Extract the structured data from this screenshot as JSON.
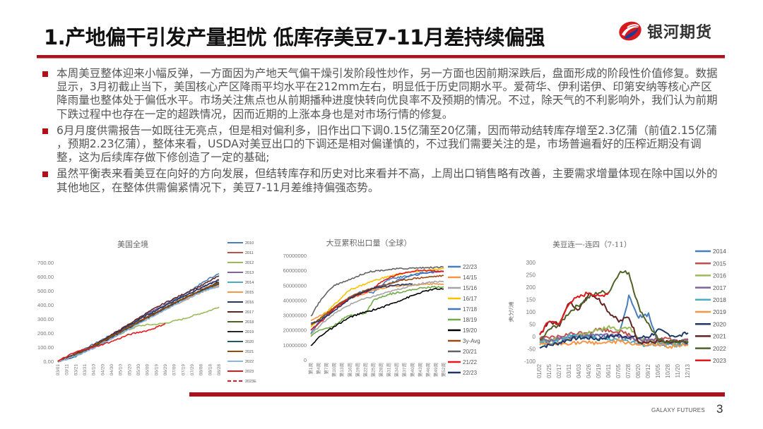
{
  "header": {
    "title": "1.产地偏干引发产量担忧 低库存美豆7-11月差持续偏强",
    "logo_text": "银河期货",
    "accent_color": "#a8141d"
  },
  "bullets": [
    "本周美豆整体迎来小幅反弹，一方面因为产地天气偏干燥引发阶段性炒作，另一方面也因前期深跌后，盘面形成的阶段性价值修复。数据显示，3月初截止当下，美国核心产区降雨平均水平在212mm左右，明显低于历史同期水平。爱荷华、伊利诺伊、印第安纳等核心产区降雨量也整体处于偏低水平。市场关注焦点也从前期播种进度快转向优良率不及预期的情况。不过，除天气的不利影响外，我们认为前期下跌过程中也存在一定的超跌情况，因而近期的上涨本身也是对市场行情的修复。",
    "6月月度供需报告一如既往无亮点，但是相对偏利多，旧作出口下调0.15亿蒲至20亿蒲，因而带动结转库存增至2.3亿蒲（前值2.15亿蒲 ，预期2.23亿蒲），整体来看，USDA对美豆出口的下调还是相对偏谨慎的，不过我们需要关注的是，市场普遍看好的压榨近期没有调整，这为后续库存做下修创造了一定的基础;",
    "虽然平衡表来看美豆在向好的方向发展，但结转库存和历史对比来看并不高，上周出口销售略有改善，主要需求增量体现在除中国以外的其他地区，在整体供需偏紧情况下，美豆7-11月差维持偏强态势。"
  ],
  "footer": {
    "brand": "GALAXY FUTURES",
    "page": "3"
  },
  "chart_data": [
    {
      "type": "line",
      "title": "美国全境",
      "xlabel": "",
      "ylabel": "",
      "ylim": [
        0,
        700
      ],
      "yticks": [
        "0.00",
        "100.00",
        "200.00",
        "300.00",
        "400.00",
        "500.00",
        "600.00",
        "700.00"
      ],
      "categories": [
        "03/01",
        "03/11",
        "03/21",
        "03/31",
        "04/10",
        "04/20",
        "04/30",
        "05/10",
        "05/20",
        "05/30",
        "06/09",
        "06/19",
        "06/29",
        "07/09",
        "07/19",
        "07/29",
        "08/08",
        "08/18",
        "08/28"
      ],
      "grid": false,
      "legend_position": "right",
      "series": [
        {
          "name": "2010",
          "color": "#4a7ebb",
          "values": [
            0,
            28,
            58,
            90,
            120,
            155,
            190,
            225,
            262,
            300,
            335,
            365,
            400,
            435,
            470,
            510,
            550,
            590,
            620
          ]
        },
        {
          "name": "2011",
          "color": "#c0504d",
          "values": [
            0,
            22,
            50,
            80,
            110,
            140,
            175,
            210,
            245,
            280,
            315,
            345,
            380,
            410,
            440,
            470,
            500,
            525,
            550
          ]
        },
        {
          "name": "2012",
          "color": "#9bbb59",
          "values": [
            0,
            20,
            45,
            75,
            105,
            135,
            165,
            195,
            225,
            250,
            258,
            262,
            270,
            285,
            300,
            320,
            340,
            360,
            385
          ]
        },
        {
          "name": "2013",
          "color": "#8064a2",
          "values": [
            0,
            18,
            42,
            72,
            110,
            145,
            185,
            225,
            265,
            305,
            340,
            370,
            400,
            430,
            460,
            490,
            520,
            550,
            580
          ]
        },
        {
          "name": "2014",
          "color": "#4bacc6",
          "values": [
            0,
            15,
            35,
            65,
            95,
            130,
            165,
            200,
            235,
            270,
            305,
            340,
            375,
            410,
            440,
            470,
            495,
            515,
            535
          ]
        },
        {
          "name": "2015",
          "color": "#f79646",
          "values": [
            0,
            20,
            45,
            75,
            108,
            140,
            172,
            205,
            238,
            270,
            302,
            334,
            366,
            398,
            428,
            458,
            488,
            515,
            540
          ]
        },
        {
          "name": "2016",
          "color": "#1f3864",
          "values": [
            0,
            22,
            48,
            78,
            110,
            145,
            182,
            218,
            255,
            292,
            328,
            362,
            395,
            428,
            460,
            490,
            520,
            548,
            575
          ]
        },
        {
          "name": "2017",
          "color": "#632523",
          "values": [
            0,
            24,
            52,
            82,
            115,
            150,
            188,
            225,
            265,
            305,
            345,
            380,
            415,
            445,
            475,
            505,
            535,
            570,
            605
          ]
        },
        {
          "name": "2018",
          "color": "#4f6228",
          "values": [
            0,
            20,
            46,
            76,
            108,
            142,
            176,
            210,
            244,
            278,
            312,
            346,
            380,
            412,
            444,
            474,
            504,
            530,
            555
          ]
        },
        {
          "name": "2019",
          "color": "#262626",
          "values": [
            0,
            18,
            40,
            68,
            98,
            130,
            165,
            200,
            236,
            272,
            308,
            344,
            378,
            410,
            442,
            472,
            502,
            530,
            560
          ]
        },
        {
          "name": "2020",
          "color": "#215868",
          "values": [
            0,
            20,
            44,
            72,
            104,
            138,
            172,
            206,
            240,
            274,
            308,
            342,
            376,
            408,
            440,
            470,
            498,
            522,
            545
          ]
        },
        {
          "name": "2021",
          "color": "#984807",
          "values": [
            0,
            22,
            48,
            78,
            110,
            142,
            176,
            210,
            244,
            278,
            312,
            346,
            380,
            412,
            444,
            474,
            504,
            532,
            558
          ]
        },
        {
          "name": "2022",
          "color": "#8db3e2",
          "values": [
            0,
            16,
            38,
            66,
            96,
            128,
            162,
            196,
            230,
            264,
            298,
            332,
            366,
            398,
            430,
            460,
            488,
            512,
            530
          ]
        },
        {
          "name": "2023",
          "color": "#e31a1c",
          "values": [
            0,
            35,
            65,
            85,
            100,
            120,
            140,
            165,
            190,
            205,
            218,
            240,
            268
          ]
        },
        {
          "name": "2023E",
          "color": "#e31a1c",
          "dashed": true,
          "values": []
        }
      ]
    },
    {
      "type": "line",
      "title": "大豆累积出口量（全球）",
      "xlabel": "",
      "ylabel": "",
      "ylim": [
        0,
        70000000
      ],
      "yticks": [
        "0",
        "10000000",
        "20000000",
        "30000000",
        "40000000",
        "50000000",
        "60000000",
        "70000000"
      ],
      "categories": [
        "第1周",
        "第4周",
        "第7周",
        "第10周",
        "第13周",
        "第16周",
        "第19周",
        "第22周",
        "第25周",
        "第28周",
        "第31周",
        "第34周",
        "第37周",
        "第40周",
        "第43周",
        "第46周",
        "第49周",
        "第52周"
      ],
      "grid": false,
      "legend_position": "right",
      "series": [
        {
          "name": "22/23",
          "color": "#4a7ebb",
          "values": [
            18000000,
            25000000,
            30000000,
            35000000,
            39000000,
            42000000,
            44000000,
            46000000,
            45000000,
            50000000,
            54000000,
            55000000,
            56000000,
            57000000,
            58000000,
            58500000,
            59000000,
            59500000
          ]
        },
        {
          "name": "14/15",
          "color": "#f79646",
          "values": [
            26000000,
            29000000,
            32000000,
            35000000,
            38000000,
            41000000,
            43000000,
            45000000,
            47000000,
            48000000,
            49000000,
            49500000,
            50000000,
            50000000,
            50500000,
            51000000,
            51000000,
            50500000
          ]
        },
        {
          "name": "15/16",
          "color": "#a5a5a5",
          "values": [
            17000000,
            22000000,
            27000000,
            31000000,
            34000000,
            37000000,
            39500000,
            41000000,
            42500000,
            44000000,
            45500000,
            47000000,
            48500000,
            50000000,
            51000000,
            52000000,
            52500000,
            52500000
          ]
        },
        {
          "name": "16/17",
          "color": "#ffc000",
          "values": [
            22000000,
            27000000,
            32000000,
            37000000,
            42000000,
            47000000,
            49000000,
            51000000,
            53000000,
            54500000,
            56000000,
            57000000,
            58000000,
            59000000,
            59500000,
            60000000,
            60500000,
            61000000
          ]
        },
        {
          "name": "17/18",
          "color": "#4472c4",
          "values": [
            20000000,
            25000000,
            30000000,
            35000000,
            39000000,
            42000000,
            44500000,
            46500000,
            48000000,
            49500000,
            51000000,
            53000000,
            55000000,
            56500000,
            57500000,
            58500000,
            59000000,
            59500000
          ]
        },
        {
          "name": "18/19",
          "color": "#70ad47",
          "values": [
            16000000,
            20000000,
            21000000,
            23000000,
            27000000,
            30000000,
            30500000,
            31000000,
            40000000,
            42000000,
            44000000,
            45000000,
            46000000,
            47000000,
            48000000,
            48500000,
            49000000,
            49000000
          ]
        },
        {
          "name": "19/20",
          "color": "#000000",
          "values": [
            9000000,
            15000000,
            19000000,
            22000000,
            25500000,
            28500000,
            30500000,
            32000000,
            33500000,
            35000000,
            37000000,
            39000000,
            41000000,
            43000000,
            45000000,
            46500000,
            47500000,
            47500000
          ]
        },
        {
          "name": "3y-Avg",
          "color": "#9e480e",
          "values": [
            23000000,
            27000000,
            31000000,
            35000000,
            39000000,
            42000000,
            44500000,
            46500000,
            48000000,
            49500000,
            51000000,
            52500000,
            53500000,
            54500000,
            55000000,
            55500000,
            56000000,
            56500000
          ]
        },
        {
          "name": "20/21",
          "color": "#636363",
          "values": [
            29000000,
            38000000,
            45000000,
            50000000,
            52000000,
            54000000,
            56000000,
            58500000,
            59500000,
            60000000,
            60500000,
            61000000,
            61200000,
            61500000,
            61700000,
            61800000,
            62000000,
            62200000
          ]
        },
        {
          "name": "21/22",
          "color": "#e31a1c",
          "values": [
            20000000,
            24000000,
            29000000,
            34000000,
            38000000,
            41000000,
            43500000,
            45500000,
            48000000,
            52000000,
            55000000,
            57000000,
            58500000,
            59500000,
            60000000,
            60000000,
            59500000,
            59000000
          ]
        },
        {
          "name": "22/23",
          "color": "#1f3864",
          "values": [
            24000000,
            26000000,
            29000000,
            33000000,
            37000000,
            41000000,
            43500000,
            46000000,
            48000000,
            49000000,
            49500000,
            50000000,
            50500000,
            51000000
          ]
        }
      ]
    },
    {
      "type": "line",
      "title": "美豆连一-连四（7-11）",
      "xlabel": "",
      "ylabel": "美分/蒲",
      "ylim": [
        -100,
        300
      ],
      "yticks": [
        "-100",
        "-50",
        "0",
        "50",
        "100",
        "150",
        "200",
        "250",
        "300"
      ],
      "categories": [
        "01/02",
        "01/25",
        "02/17",
        "03/11",
        "04/03",
        "04/26",
        "05/19",
        "06/11",
        "07/05",
        "07/28",
        "08/20",
        "09/12",
        "10/05",
        "10/28",
        "11/20",
        "12/13"
      ],
      "grid": false,
      "legend_position": "right",
      "series": [
        {
          "name": "2014",
          "color": "#4a7ebb",
          "values": [
            -20,
            -15,
            -10,
            0,
            5,
            0,
            5,
            0,
            10,
            160,
            80,
            90,
            -30,
            -30,
            -35,
            -30
          ]
        },
        {
          "name": "2015",
          "color": "#c0504d",
          "values": [
            -10,
            -5,
            0,
            10,
            15,
            20,
            30,
            25,
            20,
            10,
            -20,
            -20,
            -10,
            -10,
            -15,
            -10
          ]
        },
        {
          "name": "2016",
          "color": "#9bbb59",
          "values": [
            -20,
            -15,
            -10,
            -5,
            5,
            15,
            25,
            40,
            30,
            40,
            -10,
            -20,
            -20,
            -20,
            -25,
            -20
          ]
        },
        {
          "name": "2017",
          "color": "#8064a2",
          "values": [
            -10,
            -15,
            -10,
            -5,
            0,
            5,
            0,
            5,
            0,
            -5,
            -10,
            -15,
            -20,
            -20,
            -20,
            -15
          ]
        },
        {
          "name": "2018",
          "color": "#4bacc6",
          "values": [
            -30,
            -25,
            -20,
            5,
            0,
            -5,
            -10,
            -10,
            -10,
            -20,
            -30,
            -35,
            -30,
            -35,
            -35,
            -30
          ]
        },
        {
          "name": "2019",
          "color": "#f79646",
          "values": [
            -35,
            -30,
            -30,
            -25,
            -25,
            -25,
            -25,
            -25,
            -20,
            -25,
            -35,
            -35,
            -35,
            -40,
            -40,
            -35
          ]
        },
        {
          "name": "2020",
          "color": "#1f3864",
          "values": [
            -40,
            -35,
            -25,
            -10,
            -5,
            -5,
            -10,
            0,
            5,
            0,
            -5,
            0,
            25,
            10,
            0,
            15
          ]
        },
        {
          "name": "2021",
          "color": "#632523",
          "values": [
            10,
            60,
            50,
            140,
            110,
            180,
            150,
            100,
            60,
            80,
            -20,
            -25,
            -20,
            -25,
            -25,
            -20
          ]
        },
        {
          "name": "2022",
          "color": "#4f6228",
          "values": [
            -20,
            30,
            50,
            100,
            130,
            160,
            180,
            180,
            260,
            260,
            120,
            50,
            -15,
            -20,
            -20,
            -25
          ]
        },
        {
          "name": "2023",
          "color": "#e31a1c",
          "values": [
            10,
            65,
            50,
            140,
            160,
            180,
            160,
            180
          ]
        }
      ]
    }
  ]
}
